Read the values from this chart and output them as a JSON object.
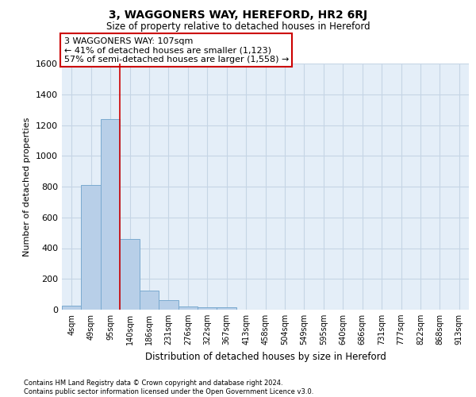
{
  "title": "3, WAGGONERS WAY, HEREFORD, HR2 6RJ",
  "subtitle": "Size of property relative to detached houses in Hereford",
  "xlabel": "Distribution of detached houses by size in Hereford",
  "ylabel": "Number of detached properties",
  "bar_categories": [
    "4sqm",
    "49sqm",
    "95sqm",
    "140sqm",
    "186sqm",
    "231sqm",
    "276sqm",
    "322sqm",
    "367sqm",
    "413sqm",
    "458sqm",
    "504sqm",
    "549sqm",
    "595sqm",
    "640sqm",
    "686sqm",
    "731sqm",
    "777sqm",
    "822sqm",
    "868sqm",
    "913sqm"
  ],
  "bar_values": [
    25,
    810,
    1240,
    460,
    125,
    60,
    22,
    18,
    15,
    0,
    0,
    0,
    0,
    0,
    0,
    0,
    0,
    0,
    0,
    0,
    0
  ],
  "bar_color": "#b8cfe8",
  "bar_edge_color": "#7aaad0",
  "grid_color": "#c5d5e5",
  "background_color": "#e4eef8",
  "annotation_box_text": "3 WAGGONERS WAY: 107sqm\n← 41% of detached houses are smaller (1,123)\n57% of semi-detached houses are larger (1,558) →",
  "annotation_box_color": "white",
  "annotation_box_edge_color": "#cc0000",
  "vline_x_index": 2.5,
  "vline_color": "#cc0000",
  "ylim": [
    0,
    1600
  ],
  "yticks": [
    0,
    200,
    400,
    600,
    800,
    1000,
    1200,
    1400,
    1600
  ],
  "footer_line1": "Contains HM Land Registry data © Crown copyright and database right 2024.",
  "footer_line2": "Contains public sector information licensed under the Open Government Licence v3.0."
}
